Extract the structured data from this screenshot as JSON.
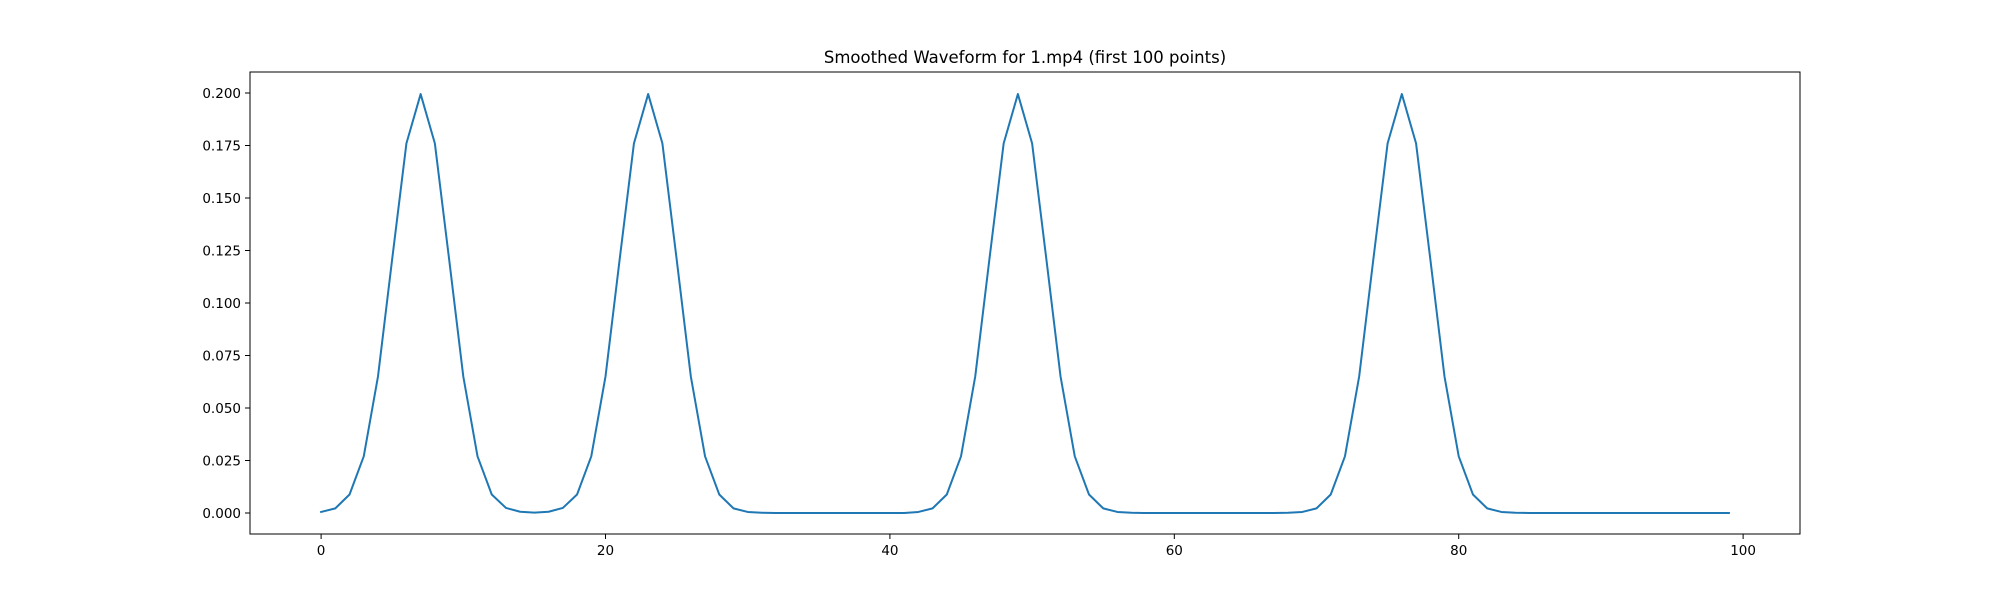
{
  "chart_data": {
    "type": "line",
    "title": "Smoothed Waveform for 1.mp4 (first 100 points)",
    "xlabel": "",
    "ylabel": "",
    "xlim": [
      -5,
      104
    ],
    "ylim": [
      -0.01,
      0.21
    ],
    "grid": false,
    "x_ticks": [
      0,
      20,
      40,
      60,
      80,
      100
    ],
    "x_tick_labels": [
      "0",
      "20",
      "40",
      "60",
      "80",
      "100"
    ],
    "y_ticks": [
      0,
      0.025,
      0.05,
      0.075,
      0.1,
      0.125,
      0.15,
      0.175,
      0.2
    ],
    "y_tick_labels": [
      "0.000",
      "0.025",
      "0.050",
      "0.075",
      "0.100",
      "0.125",
      "0.150",
      "0.175",
      "0.200"
    ],
    "series": [
      {
        "color": "#1f77b4",
        "x": [
          0,
          1,
          2,
          3,
          4,
          5,
          6,
          7,
          8,
          9,
          10,
          11,
          12,
          13,
          14,
          15,
          16,
          17,
          18,
          19,
          20,
          21,
          22,
          23,
          24,
          25,
          26,
          27,
          28,
          29,
          30,
          31,
          32,
          33,
          34,
          35,
          36,
          37,
          38,
          39,
          40,
          41,
          42,
          43,
          44,
          45,
          46,
          47,
          48,
          49,
          50,
          51,
          52,
          53,
          54,
          55,
          56,
          57,
          58,
          59,
          60,
          61,
          62,
          63,
          64,
          65,
          66,
          67,
          68,
          69,
          70,
          71,
          72,
          73,
          74,
          75,
          76,
          77,
          78,
          79,
          80,
          81,
          82,
          83,
          84,
          85,
          86,
          87,
          88,
          89,
          90,
          91,
          92,
          93,
          94,
          95,
          96,
          97,
          98,
          99
        ],
        "y": [
          0.0005,
          0.0022,
          0.0088,
          0.027,
          0.065,
          0.121,
          0.176,
          0.1995,
          0.176,
          0.121,
          0.065,
          0.027,
          0.0088,
          0.0024,
          0.0006,
          0.0002,
          0.0006,
          0.0024,
          0.0088,
          0.027,
          0.065,
          0.121,
          0.176,
          0.1995,
          0.176,
          0.121,
          0.065,
          0.027,
          0.0088,
          0.0022,
          0.0005,
          0.0001,
          0,
          0,
          0,
          0,
          0,
          0,
          0,
          0,
          0,
          0,
          0.0005,
          0.0022,
          0.0088,
          0.027,
          0.065,
          0.121,
          0.176,
          0.1995,
          0.176,
          0.121,
          0.065,
          0.027,
          0.0088,
          0.0022,
          0.0005,
          0.0001,
          0,
          0,
          0,
          0,
          0,
          0,
          0,
          0,
          0,
          0,
          0.0001,
          0.0005,
          0.0022,
          0.0088,
          0.027,
          0.065,
          0.121,
          0.176,
          0.1995,
          0.176,
          0.121,
          0.065,
          0.027,
          0.0088,
          0.0022,
          0.0005,
          0.0001,
          0,
          0,
          0,
          0,
          0,
          0,
          0,
          0,
          0,
          0,
          0,
          0,
          0,
          0,
          0
        ]
      }
    ]
  }
}
